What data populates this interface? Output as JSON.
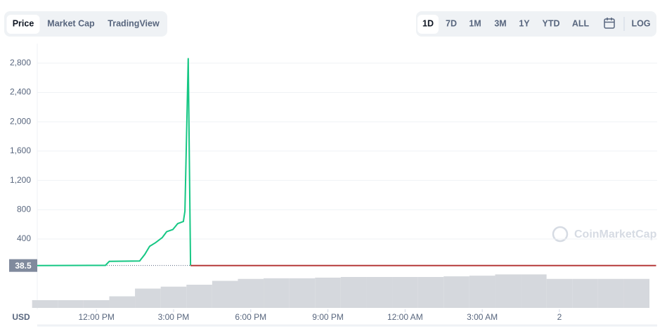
{
  "tabs": [
    "Price",
    "Market Cap",
    "TradingView"
  ],
  "selected_tab": 0,
  "ranges": [
    "1D",
    "7D",
    "1M",
    "3M",
    "1Y",
    "YTD",
    "ALL"
  ],
  "selected_range": 0,
  "log_button": "LOG",
  "currency": "USD",
  "watermark": "CoinMarketCap",
  "chart_data": {
    "type": "line",
    "series": [
      {
        "color": "#16c784",
        "x": [
          9.7,
          12.35,
          12.5,
          13.68,
          13.88,
          14.07,
          14.3,
          14.56,
          14.73,
          14.97,
          15.16,
          15.38,
          15.44,
          15.57,
          15.66
        ],
        "values": [
          38,
          40,
          95,
          100,
          190,
          300,
          350,
          420,
          500,
          530,
          610,
          640,
          780,
          2870,
          38
        ]
      },
      {
        "color": "#b53a3a",
        "x": [
          15.66,
          33.76
        ],
        "values": [
          38.5,
          38.5
        ]
      }
    ],
    "current_price": 38.5,
    "xlim": [
      9.7,
      33.8
    ],
    "xticks": [
      {
        "value": 12,
        "label": "12:00 PM"
      },
      {
        "value": 15,
        "label": "3:00 PM"
      },
      {
        "value": 18,
        "label": "6:00 PM"
      },
      {
        "value": 21,
        "label": "9:00 PM"
      },
      {
        "value": 24,
        "label": "12:00 AM"
      },
      {
        "value": 27,
        "label": "3:00 AM"
      },
      {
        "value": 30,
        "label": "2"
      }
    ],
    "ylim": [
      0,
      3000
    ],
    "yticks": [
      {
        "value": 400,
        "label": "400"
      },
      {
        "value": 800,
        "label": "800"
      },
      {
        "value": 1200,
        "label": "1,200"
      },
      {
        "value": 1600,
        "label": "1,600"
      },
      {
        "value": 2000,
        "label": "2,000"
      },
      {
        "value": 2400,
        "label": "2,400"
      },
      {
        "value": 2800,
        "label": "2,800"
      }
    ],
    "grid": true,
    "volume": {
      "color": "#d5d8dd",
      "x": [
        10,
        11,
        12,
        13,
        14,
        15,
        16,
        17,
        18,
        19,
        20,
        21,
        22,
        23,
        24,
        25,
        26,
        27,
        28,
        29,
        30,
        31,
        32,
        33
      ],
      "values": [
        12,
        12,
        12,
        18,
        30,
        33,
        36,
        42,
        45,
        46,
        46,
        47,
        48,
        48,
        48,
        48,
        49,
        50,
        52,
        52,
        45,
        45,
        45,
        45
      ],
      "ylim": [
        0,
        60
      ]
    }
  }
}
